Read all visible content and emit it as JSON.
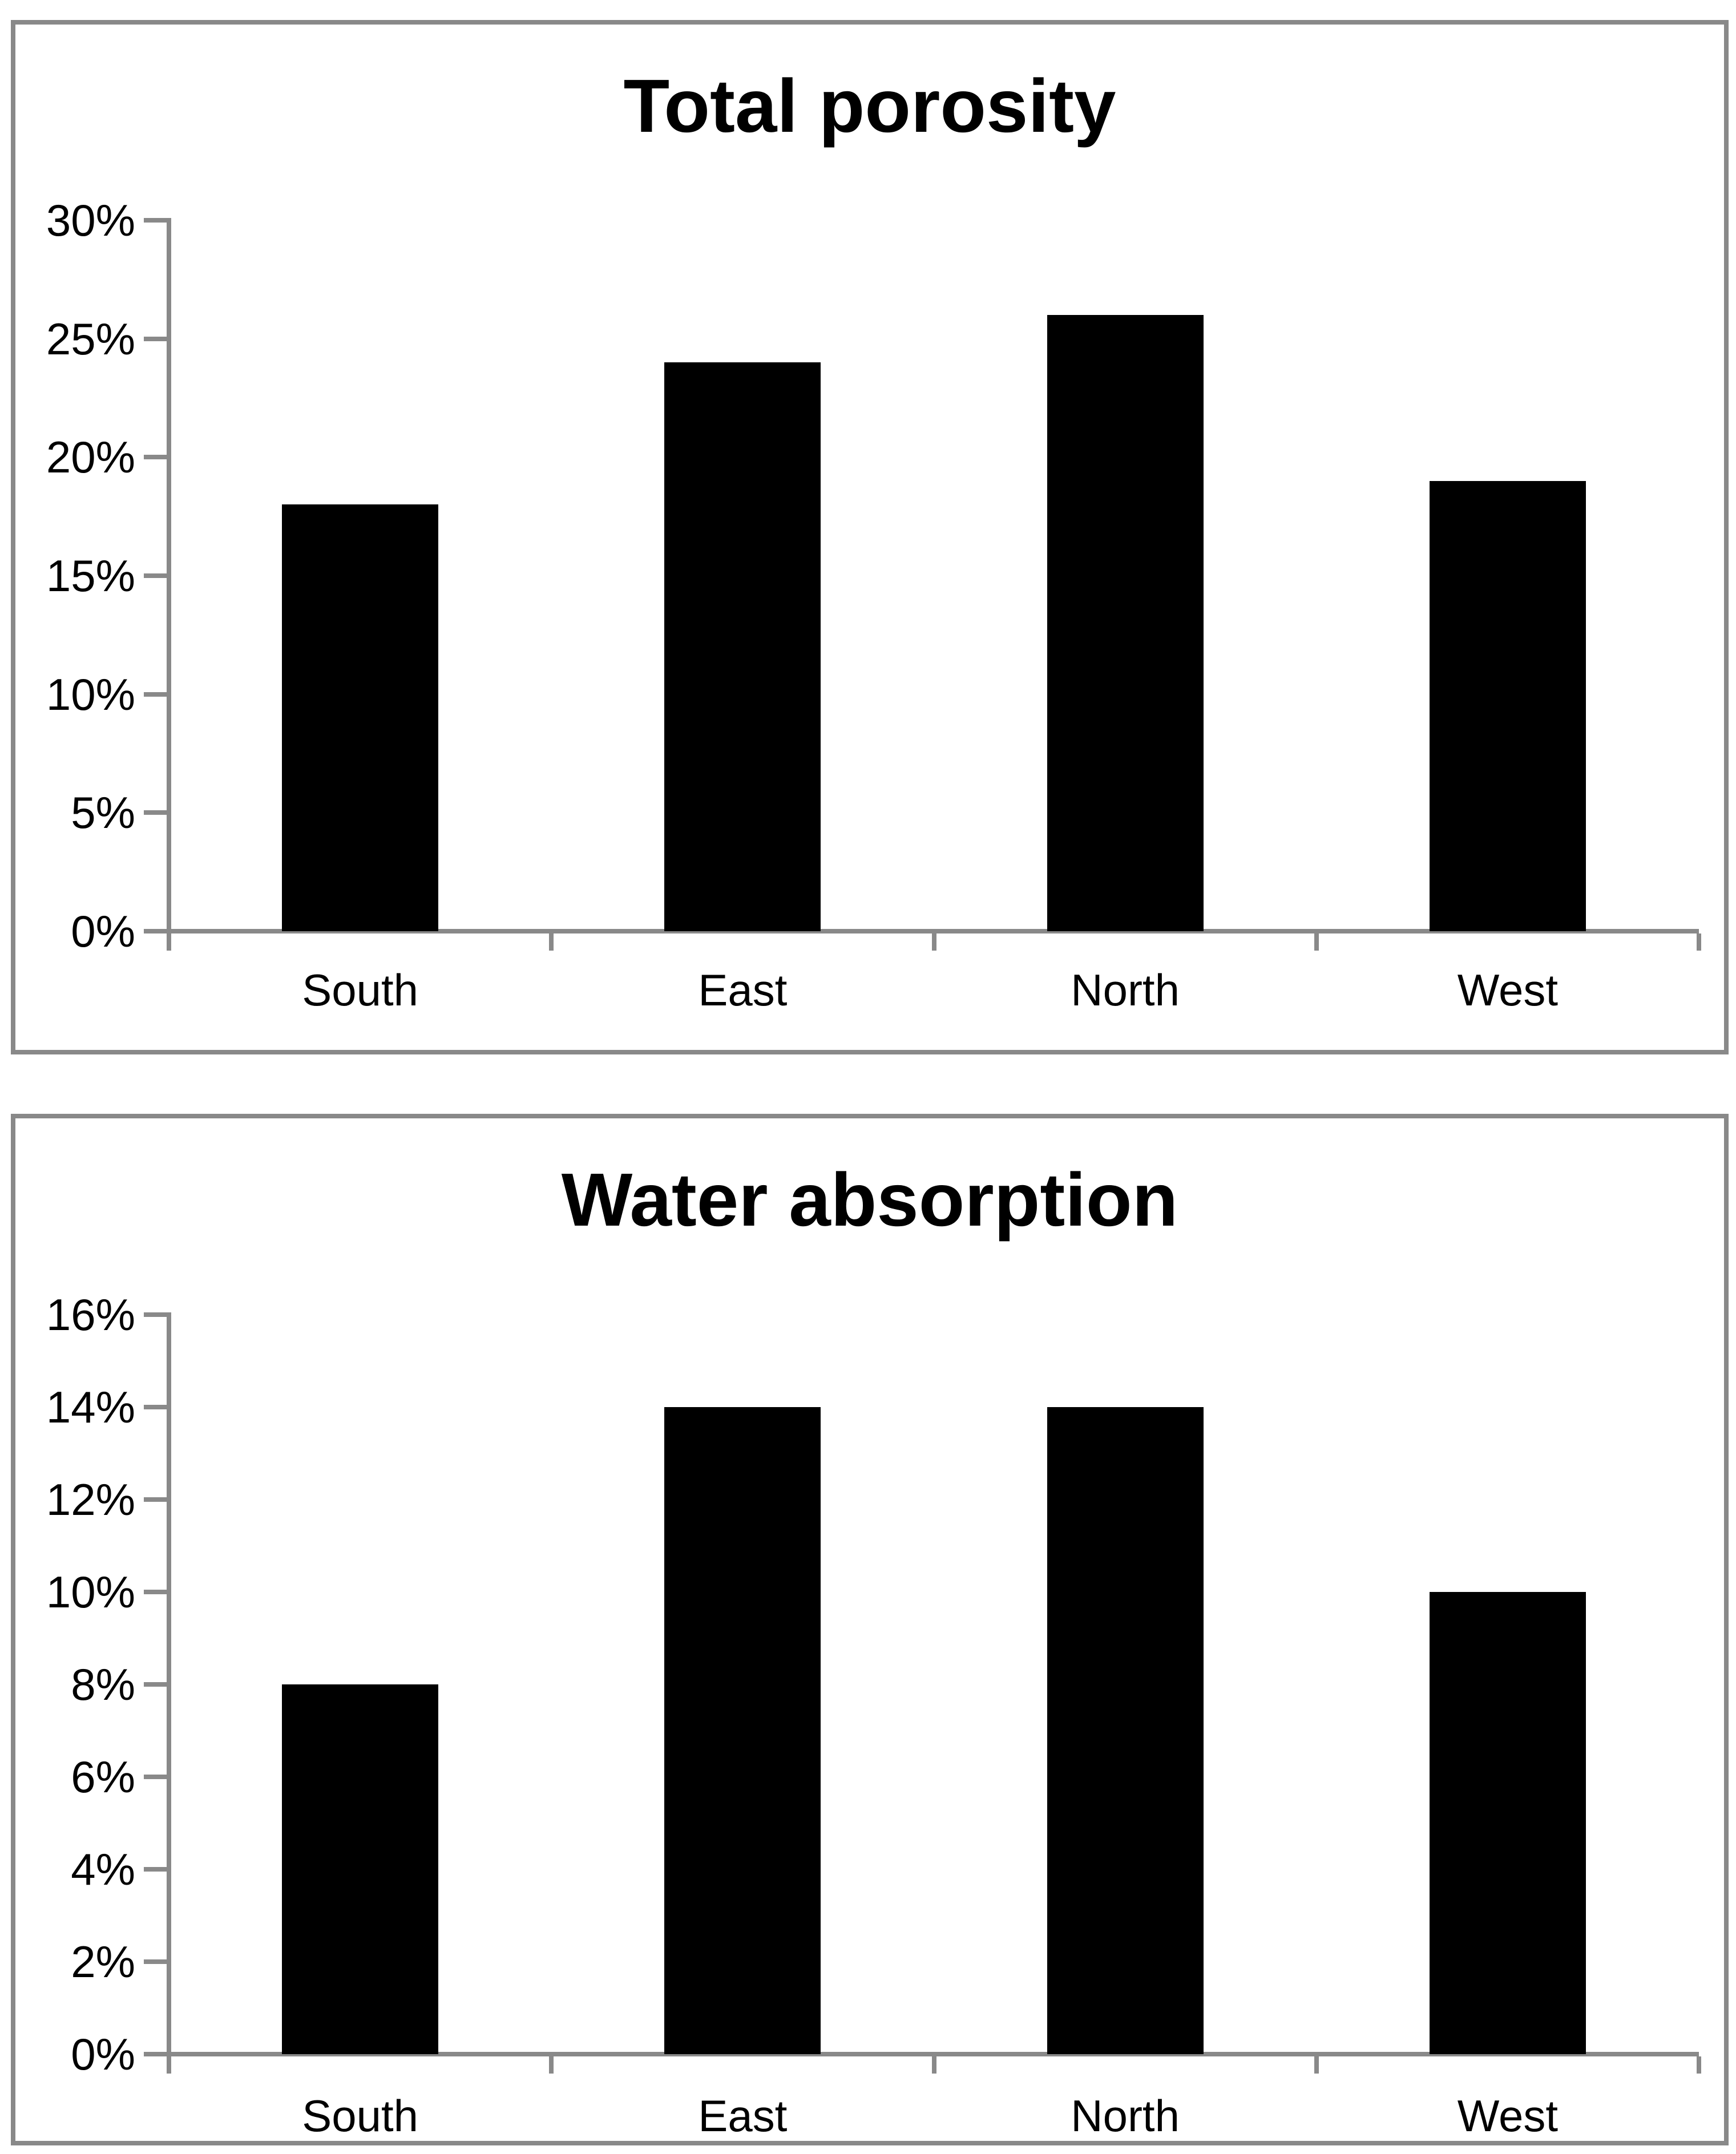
{
  "page": {
    "background": "#ffffff",
    "panel_border_color": "#898989"
  },
  "chart_data": [
    {
      "type": "bar",
      "title": "Total porosity",
      "categories": [
        "South",
        "East",
        "North",
        "West"
      ],
      "values": [
        18,
        24,
        26,
        19
      ],
      "unit": "%",
      "xlabel": "",
      "ylabel": "",
      "ylim": [
        0,
        30
      ],
      "ytick_step": 5,
      "ytick_labels": [
        "0%",
        "5%",
        "10%",
        "15%",
        "20%",
        "25%",
        "30%"
      ],
      "bar_color": "#000000",
      "axis_color": "#898989",
      "grid": false,
      "legend_position": "none"
    },
    {
      "type": "bar",
      "title": "Water absorption",
      "categories": [
        "South",
        "East",
        "North",
        "West"
      ],
      "values": [
        8,
        14,
        14,
        10
      ],
      "unit": "%",
      "xlabel": "",
      "ylabel": "",
      "ylim": [
        0,
        16
      ],
      "ytick_step": 2,
      "ytick_labels": [
        "0%",
        "2%",
        "4%",
        "6%",
        "8%",
        "10%",
        "12%",
        "14%",
        "16%"
      ],
      "bar_color": "#000000",
      "axis_color": "#898989",
      "grid": false,
      "legend_position": "none"
    }
  ]
}
